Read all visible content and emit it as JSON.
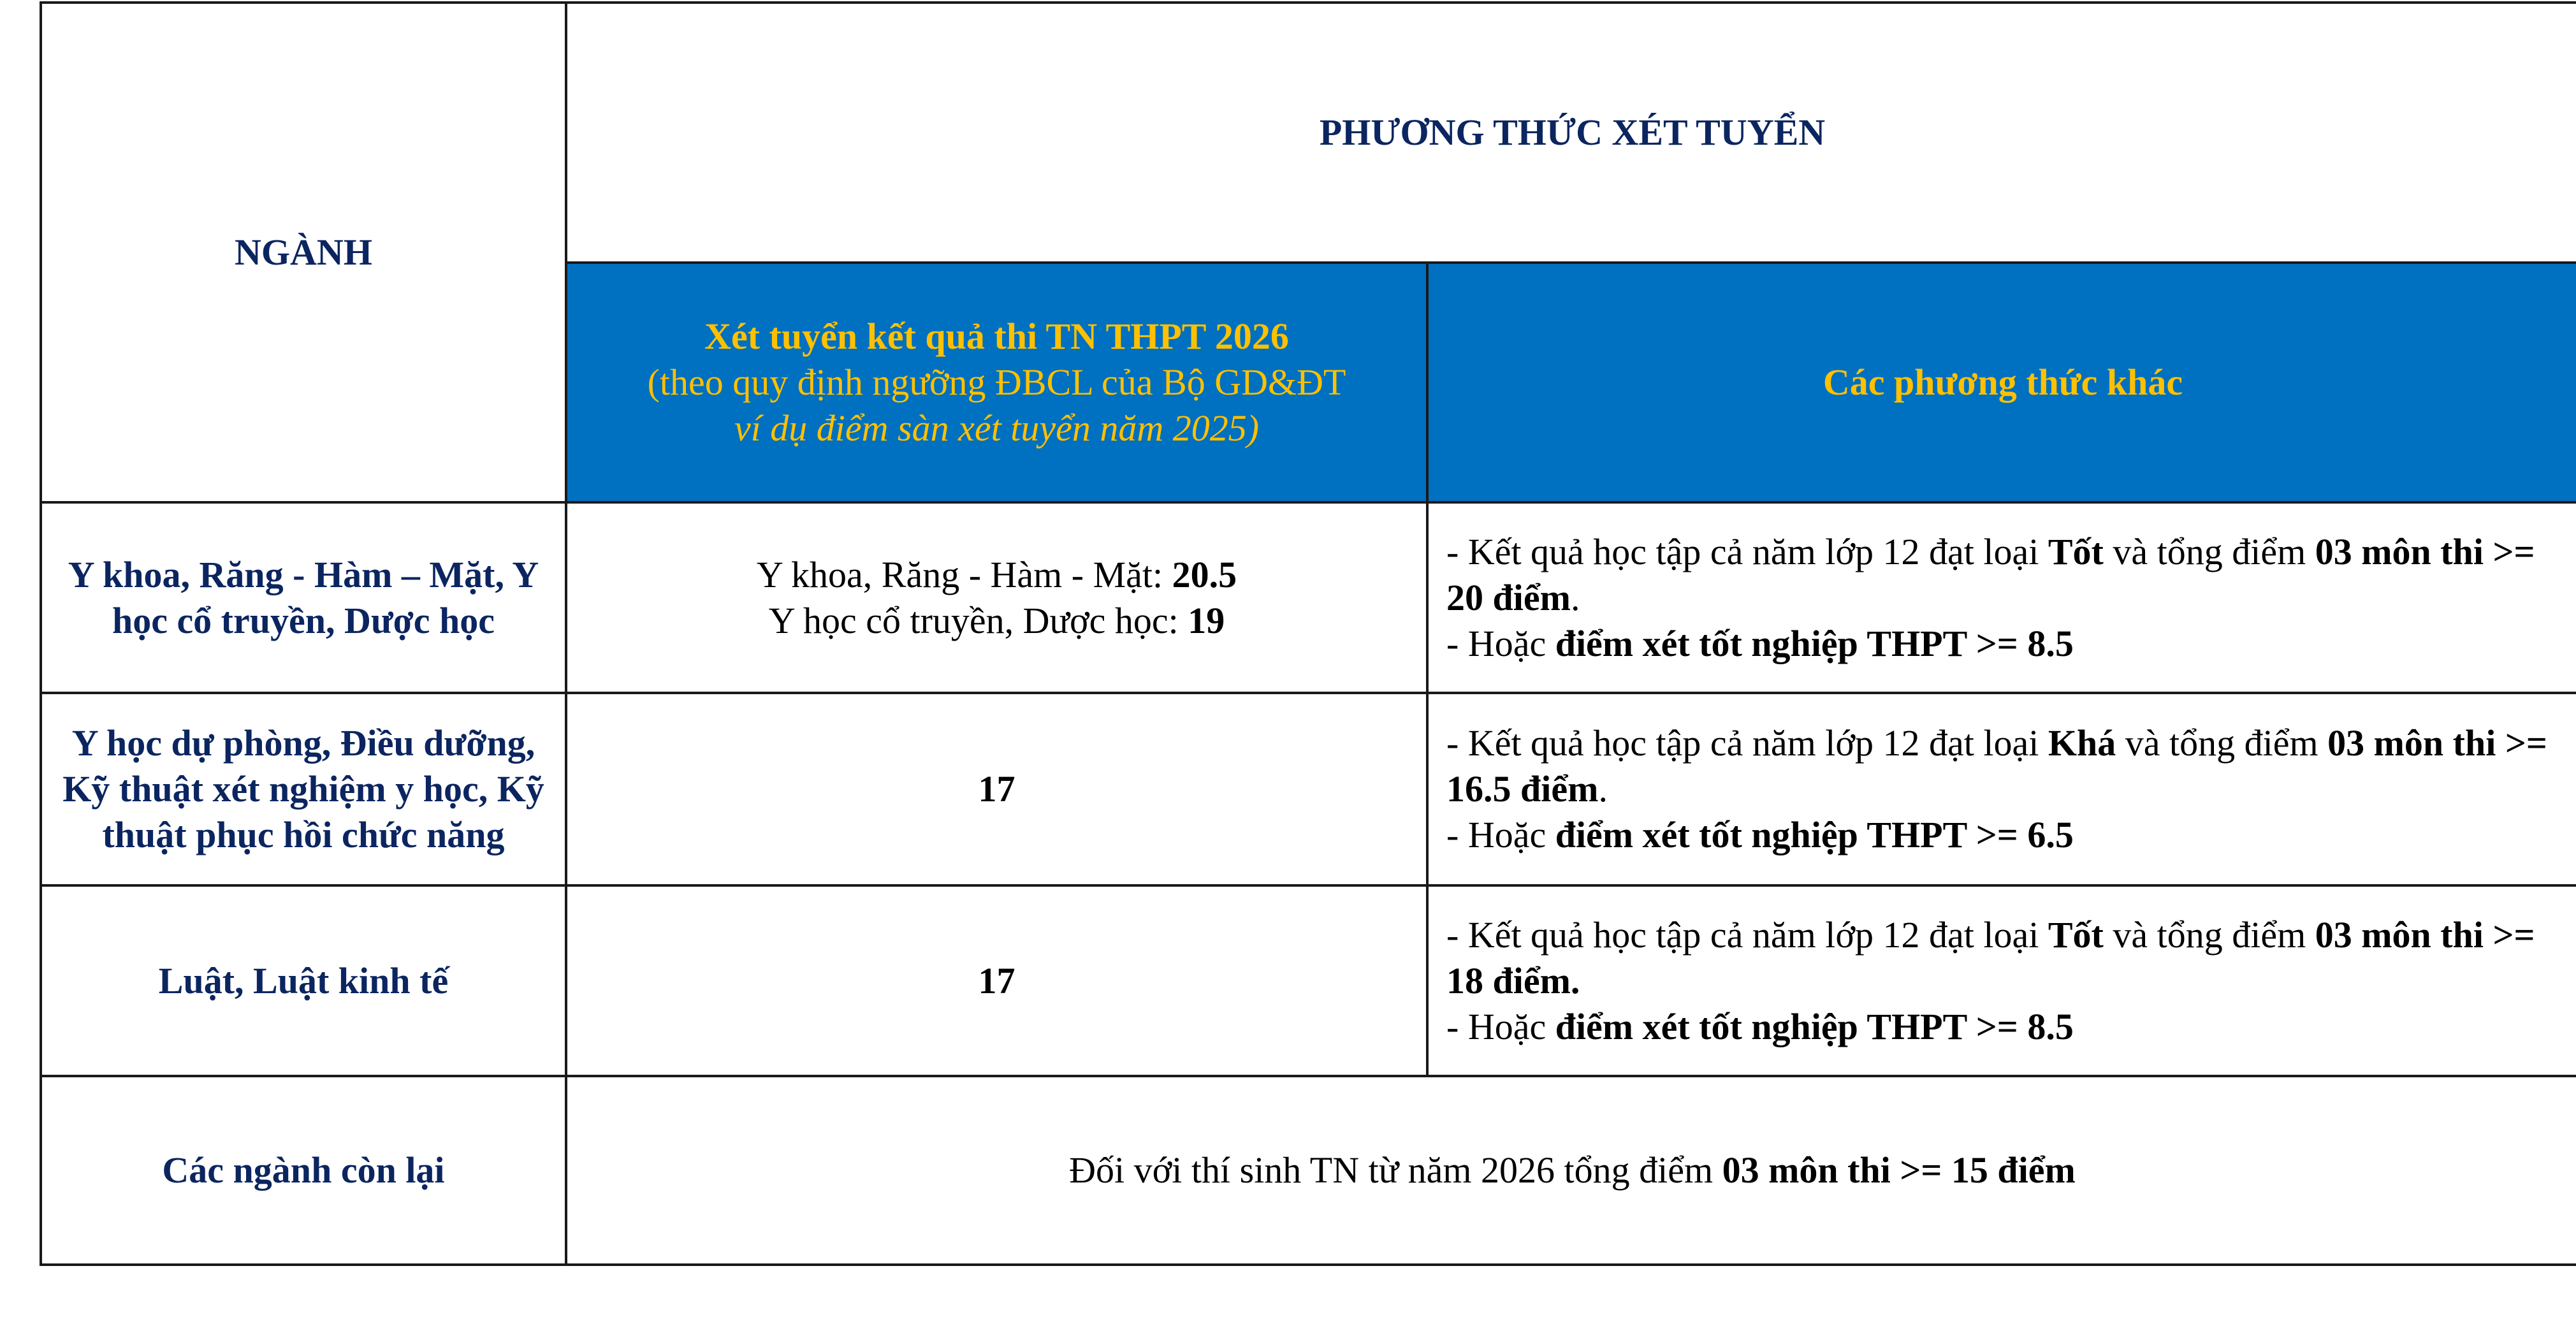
{
  "header": {
    "major_col": "NGÀNH",
    "method_group": "PHƯƠNG THỨC XÉT TUYỂN",
    "method1_title": "Xét tuyển kết quả thi TN THPT 2026",
    "method1_note": "(theo quy định ngưỡng ĐBCL của Bộ GD&ĐT",
    "method1_note2": "ví dụ điểm sàn xét tuyển năm 2025)",
    "method2_title": "Các phương thức khác"
  },
  "rows": [
    {
      "major": "Y khoa, Răng - Hàm – Mặt, Y học cổ truyền, Dược học",
      "m1_line1_label": "Y khoa, Răng - Hàm - Mặt: ",
      "m1_line1_value": "20.5",
      "m1_line2_label": "Y học cổ truyền, Dược học: ",
      "m1_line2_value": "19",
      "m2_a": "- Kết quả học tập cả năm lớp 12 đạt loại ",
      "m2_grade": "Tốt",
      "m2_b": " và tổng điểm ",
      "m2_c": "03 môn thi >= 20 điểm",
      "m2_d": ".",
      "m2_e": "- Hoặc ",
      "m2_f": "điểm xét tốt nghiệp THPT >= 8.5"
    },
    {
      "major": "Y học dự phòng, Điều dưỡng, Kỹ thuật xét nghiệm y học, Kỹ thuật phục hồi chức năng",
      "m1_value": "17",
      "m2_a": "- Kết quả học tập cả năm lớp 12 đạt loại ",
      "m2_grade": "Khá",
      "m2_b": " và tổng điểm ",
      "m2_c": "03 môn thi >= 16.5 điểm",
      "m2_d": ".",
      "m2_e": "- Hoặc ",
      "m2_f": "điểm xét tốt nghiệp THPT >= 6.5"
    },
    {
      "major": "Luật, Luật kinh tế",
      "m1_value": "17",
      "m2_a": "- Kết quả học tập cả năm lớp 12 đạt loại ",
      "m2_grade": "Tốt",
      "m2_b": " và tổng điểm ",
      "m2_c": "03 môn thi >= 18 điểm.",
      "m2_d": "",
      "m2_e": "- Hoặc ",
      "m2_f": "điểm xét tốt nghiệp THPT >= 8.5"
    },
    {
      "major": "Các ngành còn lại",
      "merged_a": "Đối với thí sinh TN từ năm 2026 tổng điểm ",
      "merged_b": "03 môn thi >= 15 điểm"
    }
  ],
  "colors": {
    "header_blue": "#0070c0",
    "header_yellow": "#ffc000",
    "navy": "#0b2560"
  }
}
